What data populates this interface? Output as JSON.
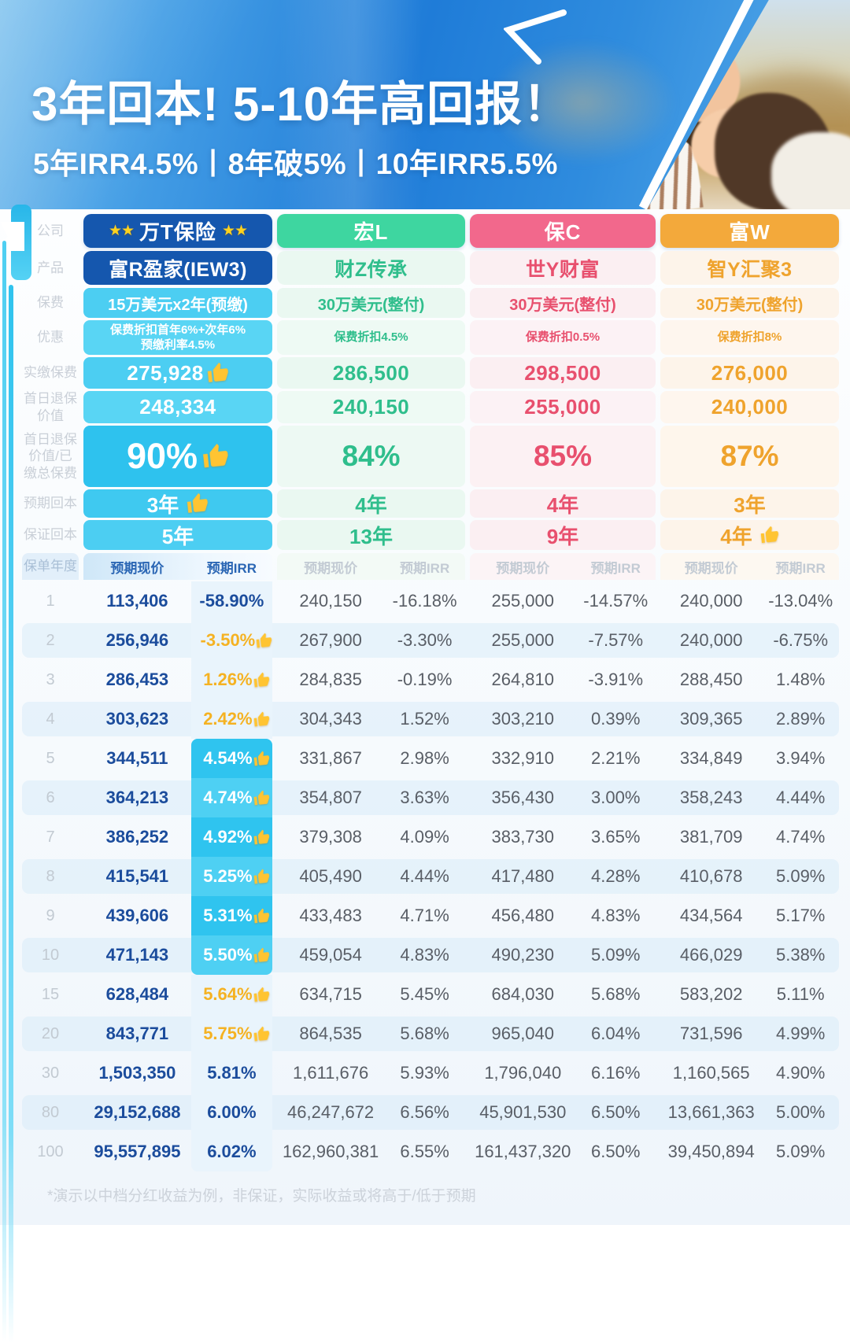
{
  "banner": {
    "title": "3年回本! 5-10年高回报！",
    "subtitle": "5年IRR4.5%丨8年破5%丨10年IRR5.5%"
  },
  "labels": {
    "company": "公司",
    "product": "产品",
    "premium": "保费",
    "discount": "优惠",
    "paid": "实缴保费",
    "day1": "首日退保价值",
    "ratio": "首日退保价值/已缴总保费",
    "expected": "预期回本",
    "guaranteed": "保证回本",
    "year": "保单年度"
  },
  "table_headers": {
    "cv": "预期现价",
    "irr": "预期IRR"
  },
  "companies": [
    {
      "name": "万T保险",
      "stars": true,
      "product": "富R盈家(IEW3)",
      "premium": "15万美元x2年(预缴)",
      "discount": [
        "保费折扣首年6%+次年6%",
        "预缴利率4.5%"
      ],
      "paid": "275,928",
      "day1": "248,334",
      "ratio": "90%",
      "expected": "3年",
      "guaranteed": "5年",
      "thumbs": {
        "paid": true,
        "day1": false,
        "ratio": true,
        "expected": true,
        "guaranteed": false
      },
      "theme": {
        "header_bg": "#1557AE",
        "product_bg": "#1557AE",
        "text": "#FFFFFF",
        "cell_bg": "#4CCEF2",
        "cell_bg_alt": "#59D5F4",
        "ratio_bg": "#2EC2EE",
        "expected_bg": "#3FC9F0",
        "value_text": "#1B4C9C",
        "irr_orange": "#F5B222",
        "hl_bg": "#2FC4EF",
        "irr_bg": "#E9F4FC",
        "col_header_text": "#2A66B4"
      }
    },
    {
      "name": "宏L",
      "stars": false,
      "product": "财Z传承",
      "premium": "30万美元(整付)",
      "discount": [
        "保费折扣4.5%"
      ],
      "paid": "286,500",
      "day1": "240,150",
      "ratio": "84%",
      "expected": "4年",
      "guaranteed": "13年",
      "thumbs": {
        "paid": false,
        "day1": false,
        "ratio": false,
        "expected": false,
        "guaranteed": false
      },
      "theme": {
        "header_bg": "#3ED6A0",
        "product_bg": "#EAF8F1",
        "text": "#2FBE8C",
        "cell_bg": "#EAF8F1",
        "cell_bg_alt": "#EEFAF4",
        "ratio_bg": "#EDF9F3",
        "expected_bg": "#EAF8F1",
        "value_text": "#595E66",
        "col_header_text": "#C3CBD4"
      }
    },
    {
      "name": "保C",
      "stars": false,
      "product": "世Y财富",
      "premium": "30万美元(整付)",
      "discount": [
        "保费折扣0.5%"
      ],
      "paid": "298,500",
      "day1": "255,000",
      "ratio": "85%",
      "expected": "4年",
      "guaranteed": "9年",
      "thumbs": {
        "paid": false,
        "day1": false,
        "ratio": false,
        "expected": false,
        "guaranteed": false
      },
      "theme": {
        "header_bg": "#F2688C",
        "product_bg": "#FBEFF2",
        "text": "#E8506E",
        "cell_bg": "#FBEFF2",
        "cell_bg_alt": "#FCF2F5",
        "ratio_bg": "#FCF1F3",
        "expected_bg": "#FBEFF2",
        "value_text": "#595E66",
        "col_header_text": "#C3CBD4"
      }
    },
    {
      "name": "富W",
      "stars": false,
      "product": "智Y汇聚3",
      "premium": "30万美元(整付)",
      "discount": [
        "保费折扣8%"
      ],
      "paid": "276,000",
      "day1": "240,000",
      "ratio": "87%",
      "expected": "3年",
      "guaranteed": "4年",
      "thumbs": {
        "paid": false,
        "day1": false,
        "ratio": false,
        "expected": false,
        "guaranteed": true
      },
      "theme": {
        "header_bg": "#F3A93B",
        "product_bg": "#FDF4EA",
        "text": "#EFA32D",
        "cell_bg": "#FDF4EA",
        "cell_bg_alt": "#FEF6EE",
        "ratio_bg": "#FEF6EC",
        "expected_bg": "#FDF4EA",
        "value_text": "#595E66",
        "col_header_text": "#C3CBD4"
      }
    }
  ],
  "table": {
    "rows": [
      {
        "y": "1",
        "c": [
          [
            "113,406",
            "-58.90%"
          ],
          [
            "240,150",
            "-16.18%"
          ],
          [
            "255,000",
            "-14.57%"
          ],
          [
            "240,000",
            "-13.04%"
          ]
        ],
        "s": "navy",
        "t": false
      },
      {
        "y": "2",
        "c": [
          [
            "256,946",
            "-3.50%"
          ],
          [
            "267,900",
            "-3.30%"
          ],
          [
            "255,000",
            "-7.57%"
          ],
          [
            "240,000",
            "-6.75%"
          ]
        ],
        "s": "orange",
        "t": true
      },
      {
        "y": "3",
        "c": [
          [
            "286,453",
            "1.26%"
          ],
          [
            "284,835",
            "-0.19%"
          ],
          [
            "264,810",
            "-3.91%"
          ],
          [
            "288,450",
            "1.48%"
          ]
        ],
        "s": "orange",
        "t": true
      },
      {
        "y": "4",
        "c": [
          [
            "303,623",
            "2.42%"
          ],
          [
            "304,343",
            "1.52%"
          ],
          [
            "303,210",
            "0.39%"
          ],
          [
            "309,365",
            "2.89%"
          ]
        ],
        "s": "orange",
        "t": true
      },
      {
        "y": "5",
        "c": [
          [
            "344,511",
            "4.54%"
          ],
          [
            "331,867",
            "2.98%"
          ],
          [
            "332,910",
            "2.21%"
          ],
          [
            "334,849",
            "3.94%"
          ]
        ],
        "s": "hl",
        "t": true
      },
      {
        "y": "6",
        "c": [
          [
            "364,213",
            "4.74%"
          ],
          [
            "354,807",
            "3.63%"
          ],
          [
            "356,430",
            "3.00%"
          ],
          [
            "358,243",
            "4.44%"
          ]
        ],
        "s": "hl",
        "t": true
      },
      {
        "y": "7",
        "c": [
          [
            "386,252",
            "4.92%"
          ],
          [
            "379,308",
            "4.09%"
          ],
          [
            "383,730",
            "3.65%"
          ],
          [
            "381,709",
            "4.74%"
          ]
        ],
        "s": "hl",
        "t": true
      },
      {
        "y": "8",
        "c": [
          [
            "415,541",
            "5.25%"
          ],
          [
            "405,490",
            "4.44%"
          ],
          [
            "417,480",
            "4.28%"
          ],
          [
            "410,678",
            "5.09%"
          ]
        ],
        "s": "hl",
        "t": true
      },
      {
        "y": "9",
        "c": [
          [
            "439,606",
            "5.31%"
          ],
          [
            "433,483",
            "4.71%"
          ],
          [
            "456,480",
            "4.83%"
          ],
          [
            "434,564",
            "5.17%"
          ]
        ],
        "s": "hl",
        "t": true
      },
      {
        "y": "10",
        "c": [
          [
            "471,143",
            "5.50%"
          ],
          [
            "459,054",
            "4.83%"
          ],
          [
            "490,230",
            "5.09%"
          ],
          [
            "466,029",
            "5.38%"
          ]
        ],
        "s": "hl",
        "t": true
      },
      {
        "y": "15",
        "c": [
          [
            "628,484",
            "5.64%"
          ],
          [
            "634,715",
            "5.45%"
          ],
          [
            "684,030",
            "5.68%"
          ],
          [
            "583,202",
            "5.11%"
          ]
        ],
        "s": "orange",
        "t": true
      },
      {
        "y": "20",
        "c": [
          [
            "843,771",
            "5.75%"
          ],
          [
            "864,535",
            "5.68%"
          ],
          [
            "965,040",
            "6.04%"
          ],
          [
            "731,596",
            "4.99%"
          ]
        ],
        "s": "orange",
        "t": true
      },
      {
        "y": "30",
        "c": [
          [
            "1,503,350",
            "5.81%"
          ],
          [
            "1,611,676",
            "5.93%"
          ],
          [
            "1,796,040",
            "6.16%"
          ],
          [
            "1,160,565",
            "4.90%"
          ]
        ],
        "s": "navy",
        "t": false
      },
      {
        "y": "80",
        "c": [
          [
            "29,152,688",
            "6.00%"
          ],
          [
            "46,247,672",
            "6.56%"
          ],
          [
            "45,901,530",
            "6.50%"
          ],
          [
            "13,661,363",
            "5.00%"
          ]
        ],
        "s": "navy",
        "t": false
      },
      {
        "y": "100",
        "c": [
          [
            "95,557,895",
            "6.02%"
          ],
          [
            "162,960,381",
            "6.55%"
          ],
          [
            "161,437,320",
            "6.50%"
          ],
          [
            "39,450,894",
            "5.09%"
          ]
        ],
        "s": "navy",
        "t": false
      }
    ]
  },
  "footnote": "*演示以中档分红收益为例，非保证，实际收益或将高于/低于预期"
}
